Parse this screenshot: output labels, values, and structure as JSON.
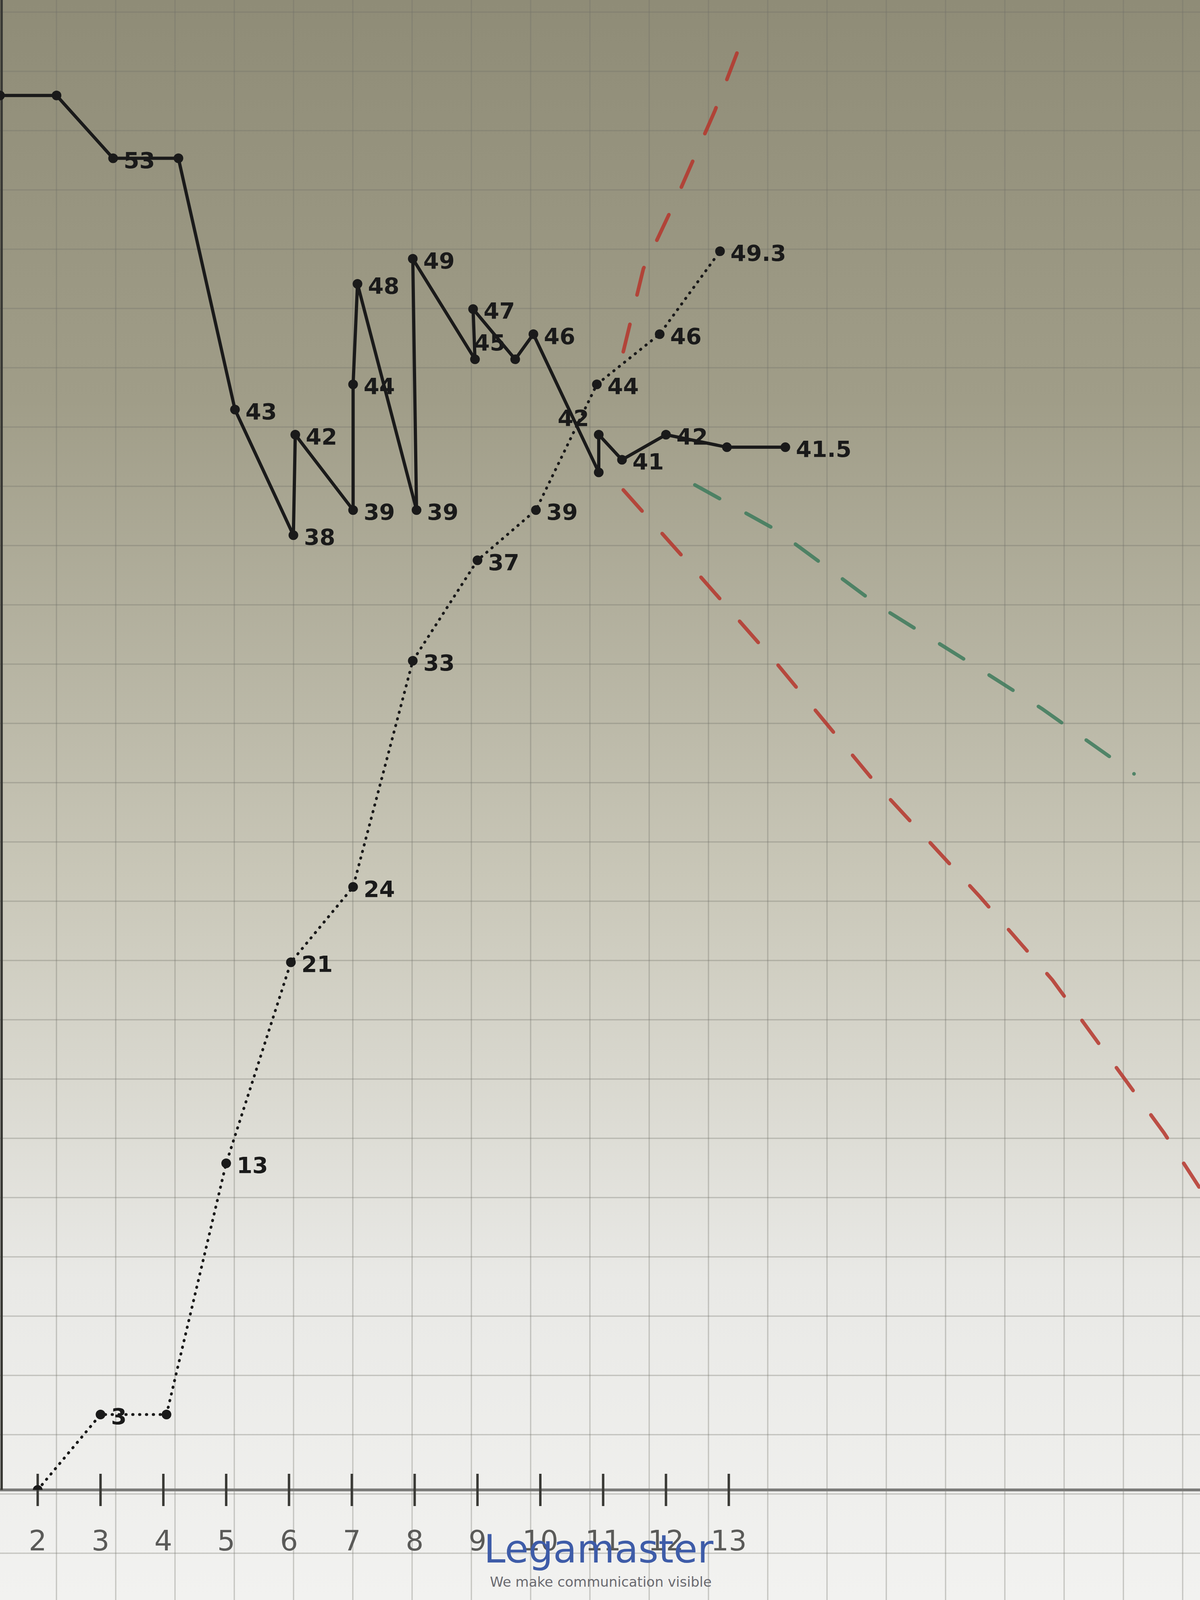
{
  "chart_data": {
    "type": "line",
    "annotations": [
      "Legamaster",
      "We make communication visible"
    ],
    "xlim": [
      1.4,
      20.5
    ],
    "xticks": [
      2,
      3,
      4,
      5,
      6,
      7,
      8,
      9,
      10,
      11,
      12,
      13
    ],
    "ylim": [
      0,
      59.3
    ],
    "tick_labels": "x",
    "data_labels": true,
    "series": [
      {
        "color": "#1a1a1a",
        "line_style": "solid",
        "marker": "dot",
        "x": [
          1.4,
          2.3,
          3.2,
          4.24,
          5.14,
          6.07,
          6.1,
          7.02,
          7.02,
          7.09,
          8.03,
          7.97,
          8.96,
          8.93,
          9.6,
          9.89,
          10.93,
          10.93,
          11.3,
          12.0,
          12.97,
          13.9
        ],
        "values": [
          55.5,
          55.5,
          53,
          53,
          43,
          38,
          42,
          39,
          44,
          48,
          39,
          49,
          45,
          47,
          45,
          46,
          40.5,
          42,
          41,
          42,
          41.5,
          41.5
        ],
        "value_labels": [
          null,
          null,
          "53",
          null,
          "43",
          "38",
          "42",
          "39",
          "44",
          "48",
          "39",
          "49",
          null,
          "47",
          "45",
          "46",
          null,
          "42",
          "41",
          "42",
          null,
          "41.5"
        ]
      },
      {
        "color": "#1a1a1a",
        "line_style": "dotted",
        "marker": "dot",
        "x": [
          2,
          3,
          4.05,
          5,
          6.03,
          7.02,
          7.97,
          9,
          9.93,
          10.9,
          11.9,
          12.86
        ],
        "values": [
          0,
          3,
          3,
          13,
          21,
          24,
          33,
          37,
          39,
          44,
          46,
          49.3
        ],
        "value_labels": [
          null,
          "3",
          null,
          "13",
          "21",
          "24",
          "33",
          "37",
          "39",
          "44",
          "46",
          "49.3"
        ]
      },
      {
        "color": "#b5352b",
        "line_style": "dashed",
        "marker": "none",
        "x": [
          11.32,
          11.64,
          12.13,
          12.78,
          13.27
        ],
        "values": [
          45.3,
          48.6,
          51.2,
          54.9,
          58.1
        ]
      },
      {
        "color": "#b5352b",
        "line_style": "dashed",
        "marker": "none",
        "x": [
          11.32,
          12.46,
          13.76,
          15.38,
          17.0,
          18.15,
          19.93,
          20.5
        ],
        "values": [
          39.8,
          36.6,
          32.9,
          28,
          23.6,
          20.3,
          14.2,
          12
        ]
      },
      {
        "color": "#3d7a5c",
        "line_style": "dashed",
        "marker": "none",
        "x": [
          12.46,
          13.76,
          15.38,
          16.85,
          17.98,
          19.45
        ],
        "values": [
          40,
          38.2,
          35.2,
          32.9,
          31.1,
          28.5
        ]
      }
    ]
  }
}
